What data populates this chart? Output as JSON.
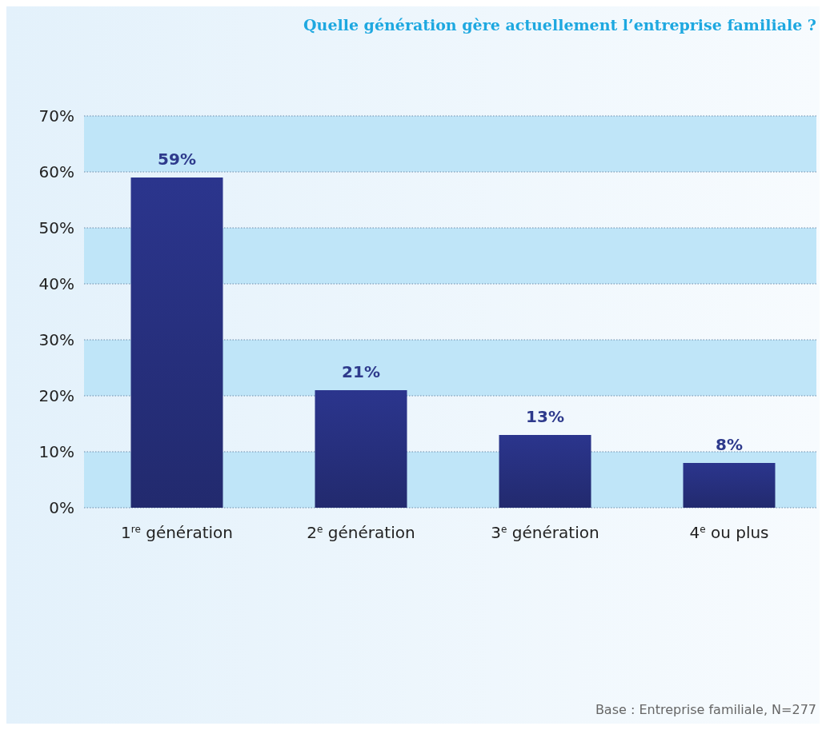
{
  "chart_data": {
    "type": "bar",
    "title": "Quelle génération gère actuellement l’entreprise familiale ?",
    "categories": [
      "1$^{re}$ génération",
      "2$^{e}$ génération",
      "3$^{e}$ génération",
      "4$^{e}$ ou plus"
    ],
    "values": [
      59,
      21,
      13,
      8
    ],
    "color": "#27307f",
    "value_labels": [
      "59%",
      "21%",
      "13%",
      "8%"
    ],
    "ylim": [
      0,
      70
    ],
    "yticks": [
      {
        "value": 0,
        "label": "0%"
      },
      {
        "value": 10,
        "label": "10%"
      },
      {
        "value": 20,
        "label": "20%"
      },
      {
        "value": 30,
        "label": "30%"
      },
      {
        "value": 40,
        "label": "40%"
      },
      {
        "value": 50,
        "label": "50%"
      },
      {
        "value": 60,
        "label": "60%"
      },
      {
        "value": 70,
        "label": "70%"
      }
    ],
    "grid": "y",
    "bands": [
      {
        "axis": "y",
        "from": 0,
        "to": 10,
        "color": "#bfe5f8"
      },
      {
        "axis": "y",
        "from": 20,
        "to": 30,
        "color": "#bfe5f8"
      },
      {
        "axis": "y",
        "from": 40,
        "to": 50,
        "color": "#bfe5f8"
      },
      {
        "axis": "y",
        "from": 60,
        "to": 70,
        "color": "#bfe5f8"
      }
    ],
    "annotations": [
      "Base : Entreprise familiale, N=277"
    ]
  }
}
